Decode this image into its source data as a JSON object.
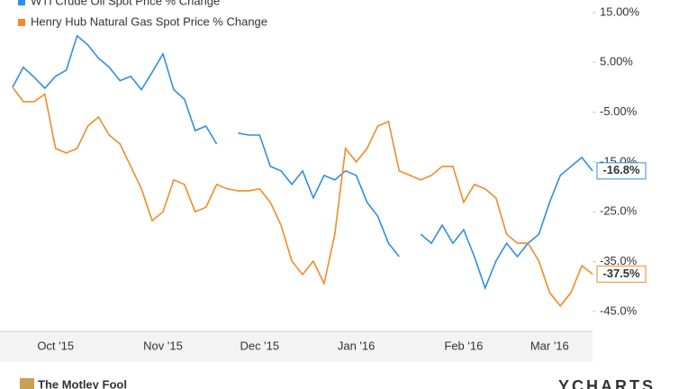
{
  "chart_data": {
    "type": "line",
    "categories": [
      null,
      null,
      null,
      null,
      "Oct '15",
      null,
      null,
      null,
      null,
      null,
      null,
      null,
      null,
      null,
      "Nov '15",
      null,
      null,
      null,
      null,
      null,
      null,
      null,
      null,
      "Dec '15",
      null,
      null,
      null,
      null,
      null,
      null,
      null,
      null,
      "Jan '16",
      null,
      null,
      null,
      null,
      null,
      null,
      null,
      null,
      null,
      "Feb '16",
      null,
      null,
      null,
      null,
      null,
      null,
      null,
      "Mar '16",
      null,
      null,
      null,
      null
    ],
    "series": [
      {
        "name": "WTI Crude Oil Spot Price % Change",
        "color": "#2f8fe0",
        "values": [
          0,
          4,
          2,
          -0.2,
          2.2,
          3.4,
          10.3,
          8.5,
          5.8,
          4,
          1.3,
          2.2,
          -0.5,
          3,
          6.7,
          -0.5,
          -2.4,
          -8.7,
          -7.8,
          -11.4,
          null,
          -9.2,
          -9.6,
          -9.6,
          -15.9,
          -16.8,
          -19.5,
          -16.8,
          -22.2,
          -17.7,
          -18.6,
          -16.8,
          -17.7,
          -23.1,
          -25.9,
          -31.3,
          -34,
          null,
          -29.5,
          -31.3,
          -27.7,
          -31.3,
          -28.6,
          -34,
          -40.3,
          -34.9,
          -31.3,
          -34,
          -31.3,
          -29.5,
          -23.1,
          -17.7,
          -15.9,
          -14.1,
          -16.8
        ],
        "value_labels": [
          null,
          null,
          null,
          null,
          null,
          null,
          null,
          null,
          null,
          null,
          null,
          null,
          null,
          null,
          null,
          null,
          null,
          null,
          null,
          null,
          null,
          null,
          null,
          null,
          null,
          null,
          null,
          null,
          null,
          null,
          null,
          null,
          null,
          null,
          null,
          null,
          null,
          null,
          null,
          null,
          null,
          null,
          null,
          null,
          null,
          null,
          null,
          null,
          null,
          null,
          null,
          null,
          null,
          null,
          "-16.8%"
        ]
      },
      {
        "name": "Henry Hub Natural Gas Spot Price % Change",
        "color": "#f28c28",
        "values": [
          0,
          -2.9,
          -2.9,
          -1.4,
          -12.3,
          -13.2,
          -12.3,
          -7.8,
          -6,
          -9.6,
          -11.4,
          -15.9,
          -20.4,
          -26.8,
          -25,
          -18.6,
          -19.5,
          -25,
          -24.1,
          -19.5,
          -20.4,
          -20.8,
          -20.8,
          -20.4,
          -23.1,
          -27.7,
          -34.9,
          -37.6,
          -34.9,
          -39.4,
          -29.5,
          -12.3,
          -15,
          -12.3,
          -7.8,
          -6.9,
          -16.8,
          -17.7,
          -18.6,
          -17.7,
          -15.9,
          -15.9,
          -23.1,
          -19.5,
          -20.4,
          -22.2,
          -29.5,
          -31.3,
          -31.3,
          -34.9,
          -41.2,
          -43.9,
          -41.2,
          -35.8,
          -37.5
        ],
        "value_labels": [
          null,
          null,
          null,
          null,
          null,
          null,
          null,
          null,
          null,
          null,
          null,
          null,
          null,
          null,
          null,
          null,
          null,
          null,
          null,
          null,
          null,
          null,
          null,
          null,
          null,
          null,
          null,
          null,
          null,
          null,
          null,
          null,
          null,
          null,
          null,
          null,
          null,
          null,
          null,
          null,
          null,
          null,
          null,
          null,
          null,
          null,
          null,
          null,
          null,
          null,
          null,
          null,
          null,
          null,
          "-37.5%"
        ]
      }
    ],
    "ylim": [
      -49,
      17.5
    ],
    "yticks": [
      {
        "value": 15,
        "label": "15.00%"
      },
      {
        "value": 5,
        "label": "5.00%"
      },
      {
        "value": -5,
        "label": "-5.00%"
      },
      {
        "value": -15,
        "label": "-15.0%"
      },
      {
        "value": -25,
        "label": "-25.0%"
      },
      {
        "value": -35,
        "label": "-35.0%"
      },
      {
        "value": -45,
        "label": "-45.0%"
      }
    ],
    "grid": false,
    "footer": {
      "left": "The Motley Fool",
      "right": "YCHARTS"
    }
  }
}
